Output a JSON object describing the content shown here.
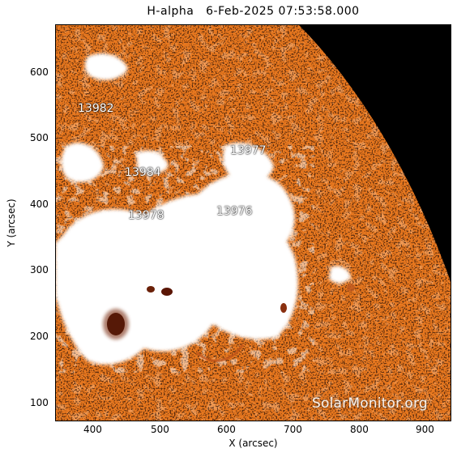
{
  "title": "H-alpha   6-Feb-2025 07:53:58.000",
  "axes": {
    "xlabel": "X (arcsec)",
    "ylabel": "Y (arcsec)",
    "x_ticks": [
      "400",
      "500",
      "600",
      "700",
      "800",
      "900"
    ],
    "y_ticks": [
      "100",
      "200",
      "300",
      "400",
      "500",
      "600"
    ]
  },
  "regions": {
    "ar1": "13982",
    "ar2": "13977",
    "ar3": "13984",
    "ar4": "13978",
    "ar5": "13976"
  },
  "watermark": "SolarMonitor.org",
  "colors": {
    "disk": "#e8781f",
    "plage": "#ffffff",
    "space": "#000000",
    "sunspot": "#200000"
  }
}
